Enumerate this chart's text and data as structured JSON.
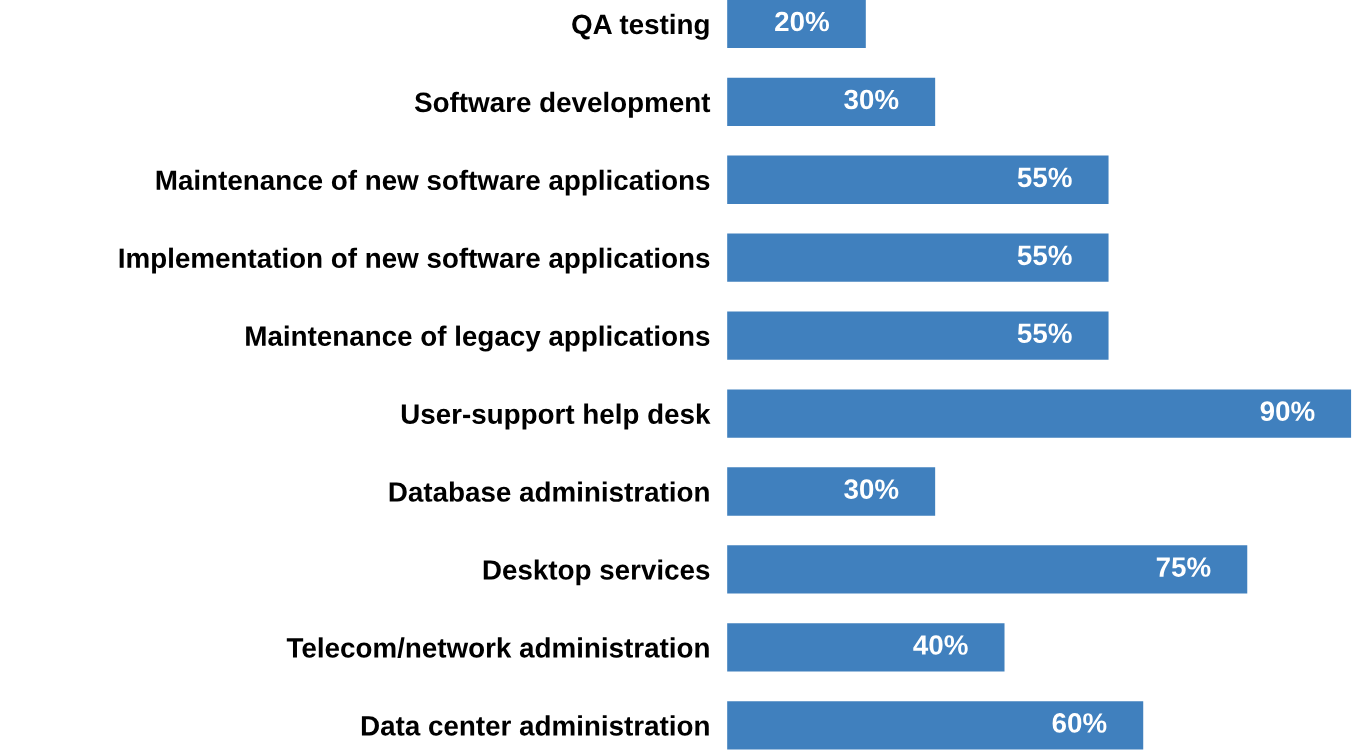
{
  "chart_data": {
    "type": "bar",
    "orientation": "horizontal",
    "categories": [
      "QA testing",
      "Software development",
      "Maintenance of new software applications",
      "Implementation of new software applications",
      "Maintenance of legacy applications",
      "User-support help desk",
      "Database administration",
      "Desktop services",
      "Telecom/network administration",
      "Data center administration"
    ],
    "values": [
      20,
      30,
      55,
      55,
      55,
      90,
      30,
      75,
      40,
      60
    ],
    "value_labels": [
      "20%",
      "30%",
      "55%",
      "55%",
      "55%",
      "90%",
      "30%",
      "75%",
      "40%",
      "60%"
    ],
    "color": "#4080be",
    "tick_labels": "y",
    "grid": false,
    "legend": false
  }
}
